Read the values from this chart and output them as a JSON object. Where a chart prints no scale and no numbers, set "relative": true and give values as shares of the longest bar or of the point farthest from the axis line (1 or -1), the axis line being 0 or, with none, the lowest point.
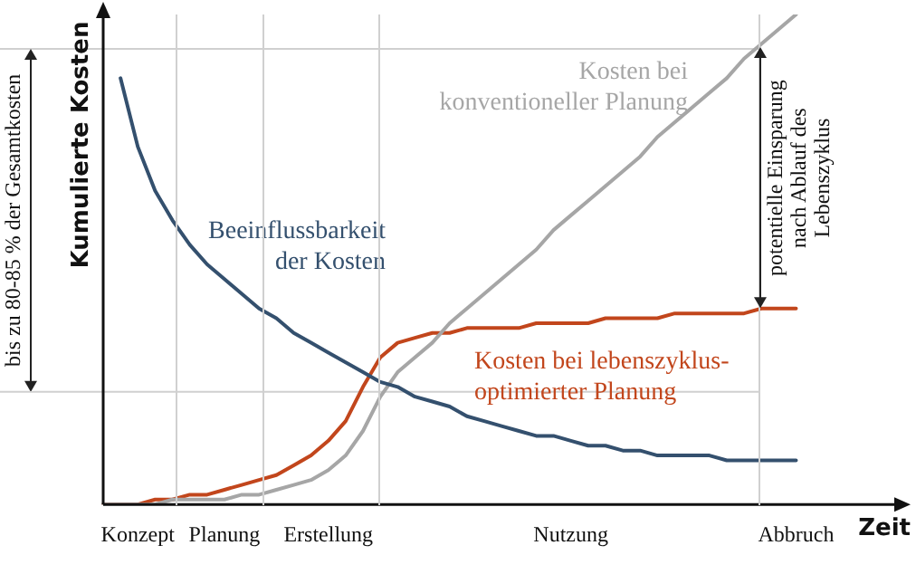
{
  "chart_data": {
    "type": "line",
    "relative": true,
    "xlabel": "Zeit",
    "ylabel": "Kumulierte Kosten",
    "legend": false,
    "marker": "none",
    "line_style": "solid",
    "categories": [
      null,
      null,
      "Konzept",
      null,
      null,
      null,
      null,
      "Planung",
      null,
      null,
      null,
      null,
      null,
      "Erstellung",
      null,
      null,
      null,
      null,
      null,
      null,
      null,
      null,
      null,
      null,
      null,
      null,
      null,
      "Nutzung",
      null,
      null,
      null,
      null,
      null,
      null,
      null,
      null,
      null,
      null,
      null,
      null,
      "Abbruch",
      null,
      null,
      null,
      null
    ],
    "series": [
      {
        "name": "Beeinflussbarkeit der Kosten",
        "color": "#34506e",
        "values": [
          null,
          0.87,
          0.73,
          0.64,
          0.58,
          0.53,
          0.49,
          0.46,
          0.43,
          0.4,
          0.38,
          0.35,
          0.33,
          0.31,
          0.29,
          0.27,
          0.25,
          0.24,
          0.22,
          0.21,
          0.2,
          0.18,
          0.17,
          0.16,
          0.15,
          0.14,
          0.14,
          0.13,
          0.12,
          0.12,
          0.11,
          0.11,
          0.1,
          0.1,
          0.1,
          0.1,
          0.09,
          0.09,
          0.09,
          0.09,
          0.09,
          null,
          null,
          null,
          null
        ]
      },
      {
        "name": "Kosten bei konventioneller Planung",
        "color": "#a6a6a6",
        "values": [
          0,
          0,
          0,
          0,
          0.01,
          0.01,
          0.01,
          0.01,
          0.02,
          0.02,
          0.03,
          0.04,
          0.05,
          0.07,
          0.1,
          0.15,
          0.22,
          0.27,
          0.3,
          0.33,
          0.37,
          0.4,
          0.43,
          0.46,
          0.49,
          0.52,
          0.56,
          0.59,
          0.62,
          0.65,
          0.68,
          0.71,
          0.75,
          0.78,
          0.81,
          0.84,
          0.87,
          0.91,
          0.94,
          0.97,
          1,
          null,
          null,
          null,
          null
        ]
      },
      {
        "name": "Kosten bei lebenszyklus-optimierter Planung",
        "color": "#c2461c",
        "values": [
          0,
          0,
          0,
          0.01,
          0.01,
          0.02,
          0.02,
          0.03,
          0.04,
          0.05,
          0.06,
          0.08,
          0.1,
          0.13,
          0.17,
          0.24,
          0.3,
          0.33,
          0.34,
          0.35,
          0.35,
          0.36,
          0.36,
          0.36,
          0.36,
          0.37,
          0.37,
          0.37,
          0.37,
          0.38,
          0.38,
          0.38,
          0.38,
          0.39,
          0.39,
          0.39,
          0.39,
          0.39,
          0.4,
          0.4,
          0.4,
          null,
          null,
          null,
          null
        ]
      }
    ],
    "ref_lines": [
      {
        "axis": "y",
        "value": 0.93,
        "color": "#d0d0d0"
      },
      {
        "axis": "y",
        "value": 0.23,
        "color": "#d0d0d0"
      }
    ],
    "annotations": [
      "bis zu 80-85 % der Gesamtkosten",
      "potentielle Einsparung nach Ablauf des Lebenszyklus"
    ]
  }
}
